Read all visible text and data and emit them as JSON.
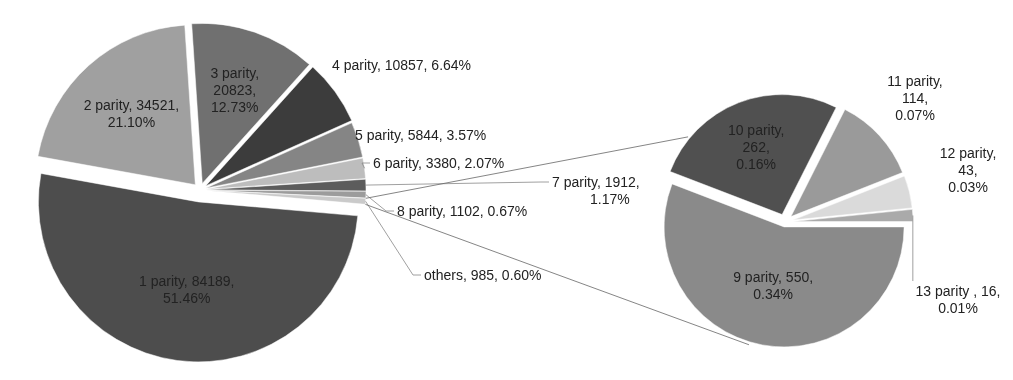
{
  "chart_data": [
    {
      "type": "pie",
      "categories": [
        "1 parity",
        "2 parity",
        "3 parity",
        "4 parity",
        "5 parity",
        "6 parity",
        "7 parity",
        "8 parity",
        "others"
      ],
      "values": [
        84189,
        34521,
        20823,
        10857,
        5844,
        3380,
        1912,
        1102,
        985
      ],
      "value_labels": [
        ", 84189, 51.46%",
        ", 34521, 21.10%",
        ", 20823, 12.73%",
        ", 10857, 6.64%",
        ", 5844, 3.57%",
        ", 3380, 2.07%",
        ", 1912, 1.17%",
        ", 1102, 0.67%",
        ", 985, 0.60%"
      ],
      "colors": [
        "#4d4d4d",
        "#a0a0a0",
        "#707070",
        "#3c3c3c",
        "#858585",
        "#bdbdbd",
        "#5c5c5c",
        "#9c9c9c",
        "#cacaca"
      ]
    },
    {
      "type": "pie",
      "categories": [
        "9 parity",
        "10 parity",
        "11 parity",
        "12 parity",
        "13 parity "
      ],
      "values": [
        550,
        262,
        114,
        43,
        16
      ],
      "value_labels": [
        ", 550, 0.34%",
        ", 262, 0.16%",
        ", 114, 0.07%",
        ", 43, 0.03%",
        ", 16, 0.01%"
      ],
      "colors": [
        "#8a8a8a",
        "#505050",
        "#9a9a9a",
        "#dadada",
        "#aaaaaa"
      ]
    }
  ]
}
